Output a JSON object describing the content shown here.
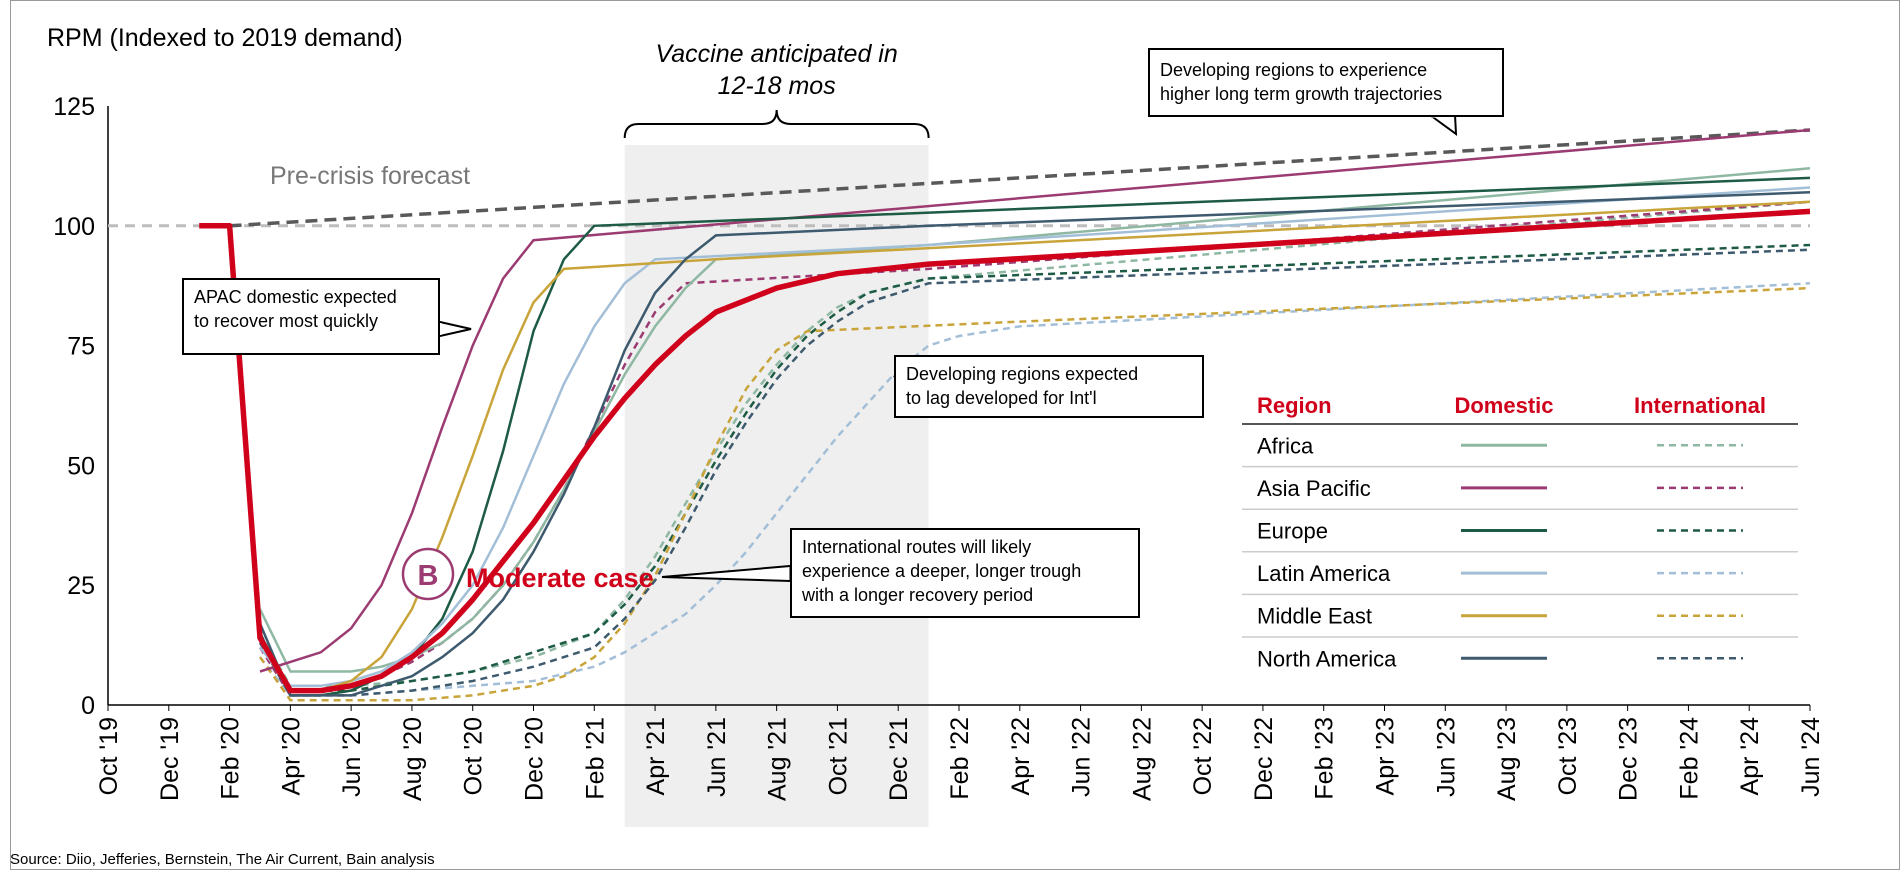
{
  "chart_data": {
    "type": "line",
    "title": "RPM (Indexed to 2019 demand)",
    "x_ticks": [
      "Oct '19",
      "Dec '19",
      "Feb '20",
      "Apr '20",
      "Jun '20",
      "Aug '20",
      "Oct '20",
      "Dec '20",
      "Feb '21",
      "Apr '21",
      "Jun '21",
      "Aug '21",
      "Oct '21",
      "Dec '21",
      "Feb '22",
      "Apr '22",
      "Jun '22",
      "Aug '22",
      "Oct '22",
      "Dec '22",
      "Feb '23",
      "Apr '23",
      "Jun '23",
      "Aug '23",
      "Oct '23",
      "Dec '23",
      "Feb '24",
      "Apr '24",
      "Jun '24"
    ],
    "y_ticks": [
      0,
      25,
      50,
      75,
      100,
      125
    ],
    "ylim": [
      0,
      125
    ],
    "xlim": [
      "2019-10",
      "2024-06"
    ],
    "grid": false,
    "reference_lines": {
      "baseline_value": 100,
      "pre_crisis_label": "Pre-crisis forecast",
      "pre_crisis_forecast": [
        [
          "2020-02",
          100
        ],
        [
          "2024-06",
          120
        ]
      ]
    },
    "shaded_region": {
      "start": "2021-03",
      "end": "2022-01",
      "label": "Vaccine anticipated in\n12-18 mos"
    },
    "series": [
      {
        "name": "Africa",
        "type": "Domestic",
        "style": "solid",
        "color": "#8fb8a3",
        "points": [
          [
            "2020-03",
            20
          ],
          [
            "2020-04",
            7
          ],
          [
            "2020-05",
            7
          ],
          [
            "2020-06",
            7
          ],
          [
            "2020-07",
            8
          ],
          [
            "2020-08",
            10
          ],
          [
            "2020-09",
            13
          ],
          [
            "2020-10",
            18
          ],
          [
            "2020-11",
            25
          ],
          [
            "2020-12",
            34
          ],
          [
            "2021-01",
            45
          ],
          [
            "2021-02",
            57
          ],
          [
            "2021-03",
            69
          ],
          [
            "2021-04",
            79
          ],
          [
            "2021-05",
            87
          ],
          [
            "2021-06",
            93
          ],
          [
            "2022-01",
            96
          ],
          [
            "2024-06",
            112
          ]
        ]
      },
      {
        "name": "Asia Pacific",
        "type": "Domestic",
        "style": "solid",
        "color": "#9b3b72",
        "points": [
          [
            "2020-03",
            7
          ],
          [
            "2020-04",
            9
          ],
          [
            "2020-05",
            11
          ],
          [
            "2020-06",
            16
          ],
          [
            "2020-07",
            25
          ],
          [
            "2020-08",
            40
          ],
          [
            "2020-09",
            58
          ],
          [
            "2020-10",
            75
          ],
          [
            "2020-11",
            89
          ],
          [
            "2020-12",
            97
          ],
          [
            "2024-06",
            120
          ]
        ]
      },
      {
        "name": "Europe",
        "type": "Domestic",
        "style": "solid",
        "color": "#1e5b45",
        "points": [
          [
            "2020-03",
            15
          ],
          [
            "2020-04",
            2
          ],
          [
            "2020-05",
            2
          ],
          [
            "2020-06",
            3
          ],
          [
            "2020-07",
            6
          ],
          [
            "2020-08",
            10
          ],
          [
            "2020-09",
            18
          ],
          [
            "2020-10",
            32
          ],
          [
            "2020-11",
            53
          ],
          [
            "2020-12",
            78
          ],
          [
            "2021-01",
            93
          ],
          [
            "2021-02",
            100
          ],
          [
            "2024-06",
            110
          ]
        ]
      },
      {
        "name": "Latin America",
        "type": "Domestic",
        "style": "solid",
        "color": "#a3bfd8",
        "points": [
          [
            "2020-03",
            12
          ],
          [
            "2020-04",
            4
          ],
          [
            "2020-05",
            4
          ],
          [
            "2020-06",
            5
          ],
          [
            "2020-07",
            7
          ],
          [
            "2020-08",
            11
          ],
          [
            "2020-09",
            17
          ],
          [
            "2020-10",
            25
          ],
          [
            "2020-11",
            37
          ],
          [
            "2020-12",
            52
          ],
          [
            "2021-01",
            67
          ],
          [
            "2021-02",
            79
          ],
          [
            "2021-03",
            88
          ],
          [
            "2021-04",
            93
          ],
          [
            "2022-01",
            96
          ],
          [
            "2024-06",
            108
          ]
        ]
      },
      {
        "name": "Middle East",
        "type": "Domestic",
        "style": "solid",
        "color": "#c9a43a",
        "points": [
          [
            "2020-03",
            14
          ],
          [
            "2020-04",
            3
          ],
          [
            "2020-05",
            3
          ],
          [
            "2020-06",
            5
          ],
          [
            "2020-07",
            10
          ],
          [
            "2020-08",
            20
          ],
          [
            "2020-09",
            35
          ],
          [
            "2020-10",
            52
          ],
          [
            "2020-11",
            70
          ],
          [
            "2020-12",
            84
          ],
          [
            "2021-01",
            91
          ],
          [
            "2021-06",
            93
          ],
          [
            "2024-06",
            105
          ]
        ]
      },
      {
        "name": "North America",
        "type": "Domestic",
        "style": "solid",
        "color": "#3e5a6e",
        "points": [
          [
            "2020-03",
            17
          ],
          [
            "2020-04",
            2
          ],
          [
            "2020-05",
            2
          ],
          [
            "2020-06",
            2
          ],
          [
            "2020-07",
            4
          ],
          [
            "2020-08",
            6
          ],
          [
            "2020-09",
            10
          ],
          [
            "2020-10",
            15
          ],
          [
            "2020-11",
            22
          ],
          [
            "2020-12",
            32
          ],
          [
            "2021-01",
            44
          ],
          [
            "2021-02",
            58
          ],
          [
            "2021-03",
            74
          ],
          [
            "2021-04",
            86
          ],
          [
            "2021-05",
            93
          ],
          [
            "2021-06",
            98
          ],
          [
            "2022-01",
            100
          ],
          [
            "2024-06",
            107
          ]
        ]
      },
      {
        "name": "Africa",
        "type": "International",
        "style": "dashed",
        "color": "#8fb8a3",
        "points": [
          [
            "2020-03",
            15
          ],
          [
            "2020-04",
            4
          ],
          [
            "2020-06",
            4
          ],
          [
            "2020-08",
            5
          ],
          [
            "2020-10",
            7
          ],
          [
            "2020-12",
            10
          ],
          [
            "2021-02",
            15
          ],
          [
            "2021-03",
            22
          ],
          [
            "2021-04",
            31
          ],
          [
            "2021-05",
            42
          ],
          [
            "2021-06",
            53
          ],
          [
            "2021-07",
            63
          ],
          [
            "2021-08",
            71
          ],
          [
            "2021-09",
            78
          ],
          [
            "2021-10",
            83
          ],
          [
            "2021-11",
            86
          ],
          [
            "2022-01",
            89
          ],
          [
            "2024-06",
            105
          ]
        ]
      },
      {
        "name": "Asia Pacific",
        "type": "International",
        "style": "dashed",
        "color": "#9b3b72",
        "points": [
          [
            "2020-03",
            12
          ],
          [
            "2020-04",
            2
          ],
          [
            "2020-05",
            2
          ],
          [
            "2020-06",
            3
          ],
          [
            "2020-07",
            6
          ],
          [
            "2020-08",
            9
          ],
          [
            "2020-09",
            13
          ],
          [
            "2020-10",
            18
          ],
          [
            "2020-11",
            25
          ],
          [
            "2020-12",
            34
          ],
          [
            "2021-01",
            45
          ],
          [
            "2021-02",
            58
          ],
          [
            "2021-03",
            71
          ],
          [
            "2021-04",
            82
          ],
          [
            "2021-05",
            88
          ],
          [
            "2022-01",
            91
          ],
          [
            "2024-06",
            105
          ]
        ]
      },
      {
        "name": "Europe",
        "type": "International",
        "style": "dashed",
        "color": "#1e5b45",
        "points": [
          [
            "2020-03",
            14
          ],
          [
            "2020-04",
            3
          ],
          [
            "2020-06",
            3
          ],
          [
            "2020-08",
            5
          ],
          [
            "2020-10",
            7
          ],
          [
            "2020-12",
            11
          ],
          [
            "2021-02",
            15
          ],
          [
            "2021-03",
            21
          ],
          [
            "2021-04",
            29
          ],
          [
            "2021-05",
            40
          ],
          [
            "2021-06",
            51
          ],
          [
            "2021-07",
            61
          ],
          [
            "2021-08",
            70
          ],
          [
            "2021-09",
            77
          ],
          [
            "2021-10",
            82
          ],
          [
            "2021-11",
            86
          ],
          [
            "2022-01",
            89
          ],
          [
            "2024-06",
            96
          ]
        ]
      },
      {
        "name": "Latin America",
        "type": "International",
        "style": "dashed",
        "color": "#a3bfd8",
        "points": [
          [
            "2020-03",
            10
          ],
          [
            "2020-04",
            2
          ],
          [
            "2020-06",
            2
          ],
          [
            "2020-08",
            3
          ],
          [
            "2020-10",
            4
          ],
          [
            "2020-12",
            5
          ],
          [
            "2021-02",
            8
          ],
          [
            "2021-03",
            11
          ],
          [
            "2021-04",
            15
          ],
          [
            "2021-05",
            19
          ],
          [
            "2021-06",
            25
          ],
          [
            "2021-07",
            32
          ],
          [
            "2021-08",
            40
          ],
          [
            "2021-09",
            48
          ],
          [
            "2021-10",
            56
          ],
          [
            "2021-11",
            63
          ],
          [
            "2021-12",
            70
          ],
          [
            "2022-01",
            75
          ],
          [
            "2022-02",
            77
          ],
          [
            "2022-04",
            79
          ],
          [
            "2024-06",
            88
          ]
        ]
      },
      {
        "name": "Middle East",
        "type": "International",
        "style": "dashed",
        "color": "#c9a43a",
        "points": [
          [
            "2020-03",
            10
          ],
          [
            "2020-04",
            1
          ],
          [
            "2020-06",
            1
          ],
          [
            "2020-08",
            1
          ],
          [
            "2020-10",
            2
          ],
          [
            "2020-12",
            4
          ],
          [
            "2021-01",
            6
          ],
          [
            "2021-02",
            10
          ],
          [
            "2021-03",
            17
          ],
          [
            "2021-04",
            27
          ],
          [
            "2021-05",
            40
          ],
          [
            "2021-06",
            54
          ],
          [
            "2021-07",
            66
          ],
          [
            "2021-08",
            74
          ],
          [
            "2021-09",
            78
          ],
          [
            "2022-04",
            80
          ],
          [
            "2024-06",
            87
          ]
        ]
      },
      {
        "name": "North America",
        "type": "International",
        "style": "dashed",
        "color": "#3e5a6e",
        "points": [
          [
            "2020-03",
            13
          ],
          [
            "2020-04",
            2
          ],
          [
            "2020-06",
            2
          ],
          [
            "2020-08",
            3
          ],
          [
            "2020-10",
            5
          ],
          [
            "2020-12",
            8
          ],
          [
            "2021-02",
            12
          ],
          [
            "2021-03",
            18
          ],
          [
            "2021-04",
            26
          ],
          [
            "2021-05",
            37
          ],
          [
            "2021-06",
            49
          ],
          [
            "2021-07",
            59
          ],
          [
            "2021-08",
            68
          ],
          [
            "2021-09",
            75
          ],
          [
            "2021-10",
            80
          ],
          [
            "2021-11",
            84
          ],
          [
            "2022-01",
            88
          ],
          [
            "2024-06",
            95
          ]
        ]
      },
      {
        "name": "Moderate case",
        "type": "Scenario",
        "style": "solid",
        "color": "#d0021b",
        "points": [
          [
            "2020-01",
            100
          ],
          [
            "2020-02",
            100
          ],
          [
            "2020-03",
            14
          ],
          [
            "2020-04",
            3
          ],
          [
            "2020-05",
            3
          ],
          [
            "2020-06",
            4
          ],
          [
            "2020-07",
            6
          ],
          [
            "2020-08",
            10
          ],
          [
            "2020-09",
            15
          ],
          [
            "2020-10",
            22
          ],
          [
            "2020-11",
            30
          ],
          [
            "2020-12",
            38
          ],
          [
            "2021-01",
            47
          ],
          [
            "2021-02",
            56
          ],
          [
            "2021-03",
            64
          ],
          [
            "2021-04",
            71
          ],
          [
            "2021-05",
            77
          ],
          [
            "2021-06",
            82
          ],
          [
            "2021-08",
            87
          ],
          [
            "2021-10",
            90
          ],
          [
            "2022-01",
            92
          ],
          [
            "2024-06",
            103
          ]
        ]
      }
    ],
    "scenario": {
      "badge": "B",
      "label": "Moderate case"
    },
    "legend": {
      "placement": "bottom-right",
      "headers": {
        "region": "Region",
        "domestic": "Domestic",
        "international": "International"
      },
      "rows": [
        "Africa",
        "Asia Pacific",
        "Europe",
        "Latin America",
        "Middle East",
        "North America"
      ]
    },
    "annotations": {
      "apac": "APAC domestic expected\nto recover most quickly",
      "developing_lag": "Developing regions expected\nto lag developed for Int'l",
      "developing_growth": "Developing regions to experience\nhigher long term growth trajectories",
      "international_trough": "International routes will likely\nexperience a deeper, longer trough\nwith a longer recovery period"
    },
    "accent_color": "#d0021b"
  },
  "footer": {
    "source": "Source: Diio, Jefferies, Bernstein, The Air Current, Bain analysis"
  }
}
